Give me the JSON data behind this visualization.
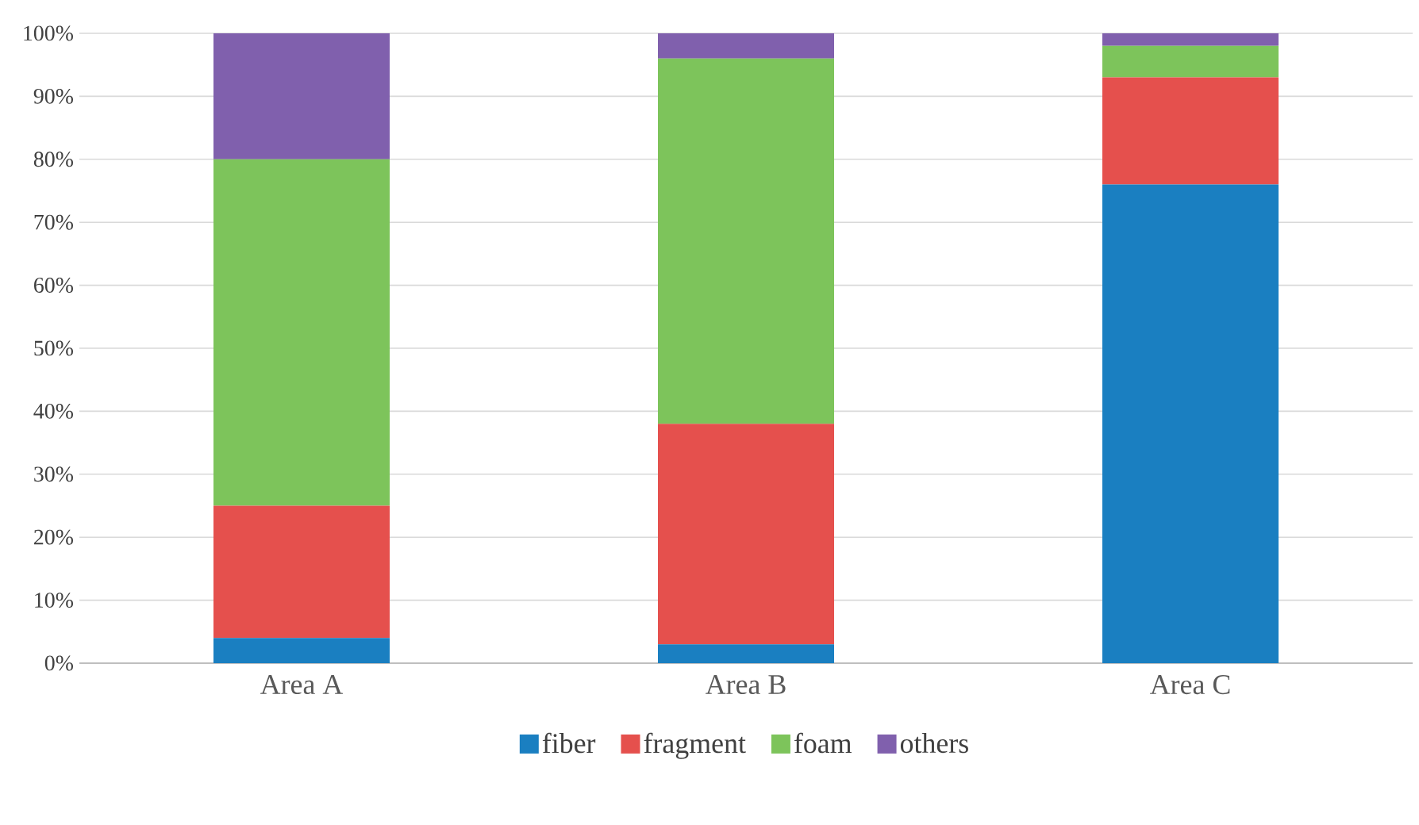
{
  "chart_data": {
    "type": "bar",
    "stacked": true,
    "categories": [
      "Area A",
      "Area B",
      "Area C"
    ],
    "series": [
      {
        "name": "fiber",
        "color": "#1a7fc1",
        "values": [
          4,
          3,
          76
        ]
      },
      {
        "name": "fragment",
        "color": "#e5504d",
        "values": [
          21,
          35,
          17
        ]
      },
      {
        "name": "foam",
        "color": "#7dc45b",
        "values": [
          55,
          58,
          5
        ]
      },
      {
        "name": "others",
        "color": "#8060ad",
        "values": [
          20,
          4,
          2
        ]
      }
    ],
    "ylim": [
      0,
      100
    ],
    "yticks": [
      {
        "value": 0,
        "label": "0%"
      },
      {
        "value": 10,
        "label": "10%"
      },
      {
        "value": 20,
        "label": "20%"
      },
      {
        "value": 30,
        "label": "30%"
      },
      {
        "value": 40,
        "label": "40%"
      },
      {
        "value": 50,
        "label": "50%"
      },
      {
        "value": 60,
        "label": "60%"
      },
      {
        "value": 70,
        "label": "70%"
      },
      {
        "value": 80,
        "label": "80%"
      },
      {
        "value": 90,
        "label": "90%"
      },
      {
        "value": 100,
        "label": "100%"
      }
    ],
    "grid": "y",
    "legend": "bottom"
  }
}
